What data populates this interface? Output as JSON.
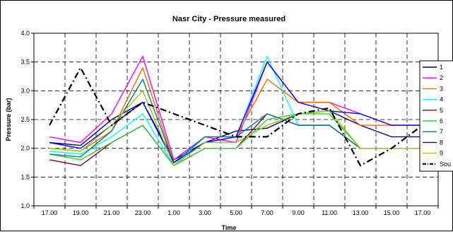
{
  "chart_data": {
    "type": "line",
    "title": "Nasr City - Pressure measured",
    "xlabel": "Time",
    "ylabel": "Pressure (bar)",
    "ylim": [
      1.0,
      4.0
    ],
    "yticks": [
      "1.0",
      "1.5",
      "2.0",
      "2.5",
      "3.0",
      "3.5",
      "4.0"
    ],
    "categories": [
      "17.00",
      "19.00",
      "21.00",
      "23.00",
      "1.00",
      "3.00",
      "5.00",
      "7.00",
      "9.00",
      "11.00",
      "13.00",
      "15.00",
      "17.00"
    ],
    "grid": "dashed",
    "legend_position": "right",
    "series": [
      {
        "name": "1",
        "color": "#000080",
        "style": "solid",
        "values": [
          2.1,
          2.05,
          2.5,
          2.8,
          1.8,
          2.1,
          2.3,
          2.35,
          2.6,
          2.65,
          2.4,
          2.2,
          2.2
        ]
      },
      {
        "name": "2",
        "color": "#ff00ff",
        "style": "solid",
        "values": [
          2.2,
          2.1,
          2.6,
          3.6,
          1.8,
          2.2,
          2.1,
          3.5,
          2.8,
          2.8,
          2.6,
          2.4,
          2.4
        ]
      },
      {
        "name": "3",
        "color": "#ff6600",
        "style": "solid",
        "values": [
          2.0,
          1.95,
          2.3,
          3.4,
          1.75,
          2.2,
          2.2,
          3.2,
          2.8,
          2.8,
          2.4,
          2.4,
          2.4
        ]
      },
      {
        "name": "4",
        "color": "#00ffff",
        "style": "solid",
        "values": [
          1.95,
          1.9,
          2.2,
          2.6,
          1.7,
          2.2,
          2.2,
          3.6,
          2.4,
          2.4,
          2.0,
          2.0,
          2.0
        ]
      },
      {
        "name": "5",
        "color": "#800040",
        "style": "solid",
        "values": [
          1.8,
          1.7,
          2.1,
          2.4,
          1.7,
          2.0,
          2.0,
          2.6,
          2.4,
          2.4,
          2.0,
          2.0,
          2.0
        ]
      },
      {
        "name": "6",
        "color": "#33cc33",
        "style": "solid",
        "values": [
          1.9,
          1.8,
          2.1,
          2.4,
          1.7,
          2.0,
          2.0,
          2.5,
          2.6,
          2.6,
          2.0,
          2.0,
          2.0
        ]
      },
      {
        "name": "7",
        "color": "#008080",
        "style": "solid",
        "values": [
          1.9,
          1.85,
          2.3,
          3.2,
          1.75,
          2.2,
          2.2,
          2.6,
          2.4,
          2.4,
          2.0,
          2.0,
          2.0
        ]
      },
      {
        "name": "8",
        "color": "#0000ff",
        "style": "solid",
        "values": [
          2.1,
          2.0,
          2.4,
          2.8,
          1.75,
          2.1,
          2.2,
          3.5,
          2.8,
          2.65,
          2.6,
          2.4,
          2.4
        ]
      },
      {
        "name": "9",
        "color": "#99cc00",
        "style": "solid",
        "values": [
          2.0,
          1.95,
          2.4,
          3.0,
          1.7,
          2.1,
          2.1,
          2.4,
          2.6,
          2.65,
          2.0,
          2.0,
          2.0
        ]
      },
      {
        "name": "Sou",
        "color": "#000000",
        "style": "dashdot",
        "values": [
          2.4,
          3.4,
          2.4,
          2.8,
          2.6,
          2.4,
          2.2,
          2.2,
          2.6,
          2.7,
          1.7,
          2.0,
          2.4
        ]
      }
    ]
  }
}
